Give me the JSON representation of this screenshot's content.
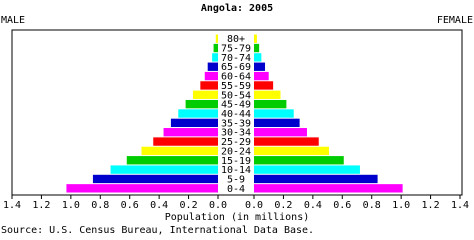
{
  "chart_data": {
    "type": "pyramid",
    "title": "Angola: 2005",
    "xlabel": "Population (in millions)",
    "source": "Source: U.S. Census Bureau, International Data Base.",
    "categories": [
      "0-4",
      "5-9",
      "10-14",
      "15-19",
      "20-24",
      "25-29",
      "30-34",
      "35-39",
      "40-44",
      "45-49",
      "50-54",
      "55-59",
      "60-64",
      "65-69",
      "70-74",
      "75-79",
      "80+"
    ],
    "colors": [
      "#ff00ff",
      "#0000cc",
      "#00ffff",
      "#00cc00",
      "#ffff00",
      "#ff0000",
      "#ff00ff",
      "#0000cc",
      "#00ffff",
      "#00cc00",
      "#ffff00",
      "#ff0000",
      "#ff00ff",
      "#0000cc",
      "#00ffff",
      "#00cc00",
      "#ffff00"
    ],
    "series": [
      {
        "name": "MALE",
        "values": [
          1.03,
          0.85,
          0.73,
          0.62,
          0.52,
          0.44,
          0.37,
          0.32,
          0.27,
          0.22,
          0.17,
          0.12,
          0.09,
          0.07,
          0.04,
          0.03,
          0.015
        ]
      },
      {
        "name": "FEMALE",
        "values": [
          1.01,
          0.84,
          0.72,
          0.61,
          0.51,
          0.44,
          0.36,
          0.31,
          0.27,
          0.22,
          0.18,
          0.13,
          0.1,
          0.075,
          0.05,
          0.035,
          0.02
        ]
      }
    ],
    "xlim": [
      0,
      1.4
    ],
    "xticks": [
      {
        "value": 0,
        "label": "0.0"
      },
      0.2,
      0.4,
      0.6,
      0.8,
      {
        "value": 1,
        "label": "1.0"
      },
      1.2,
      1.4
    ]
  }
}
